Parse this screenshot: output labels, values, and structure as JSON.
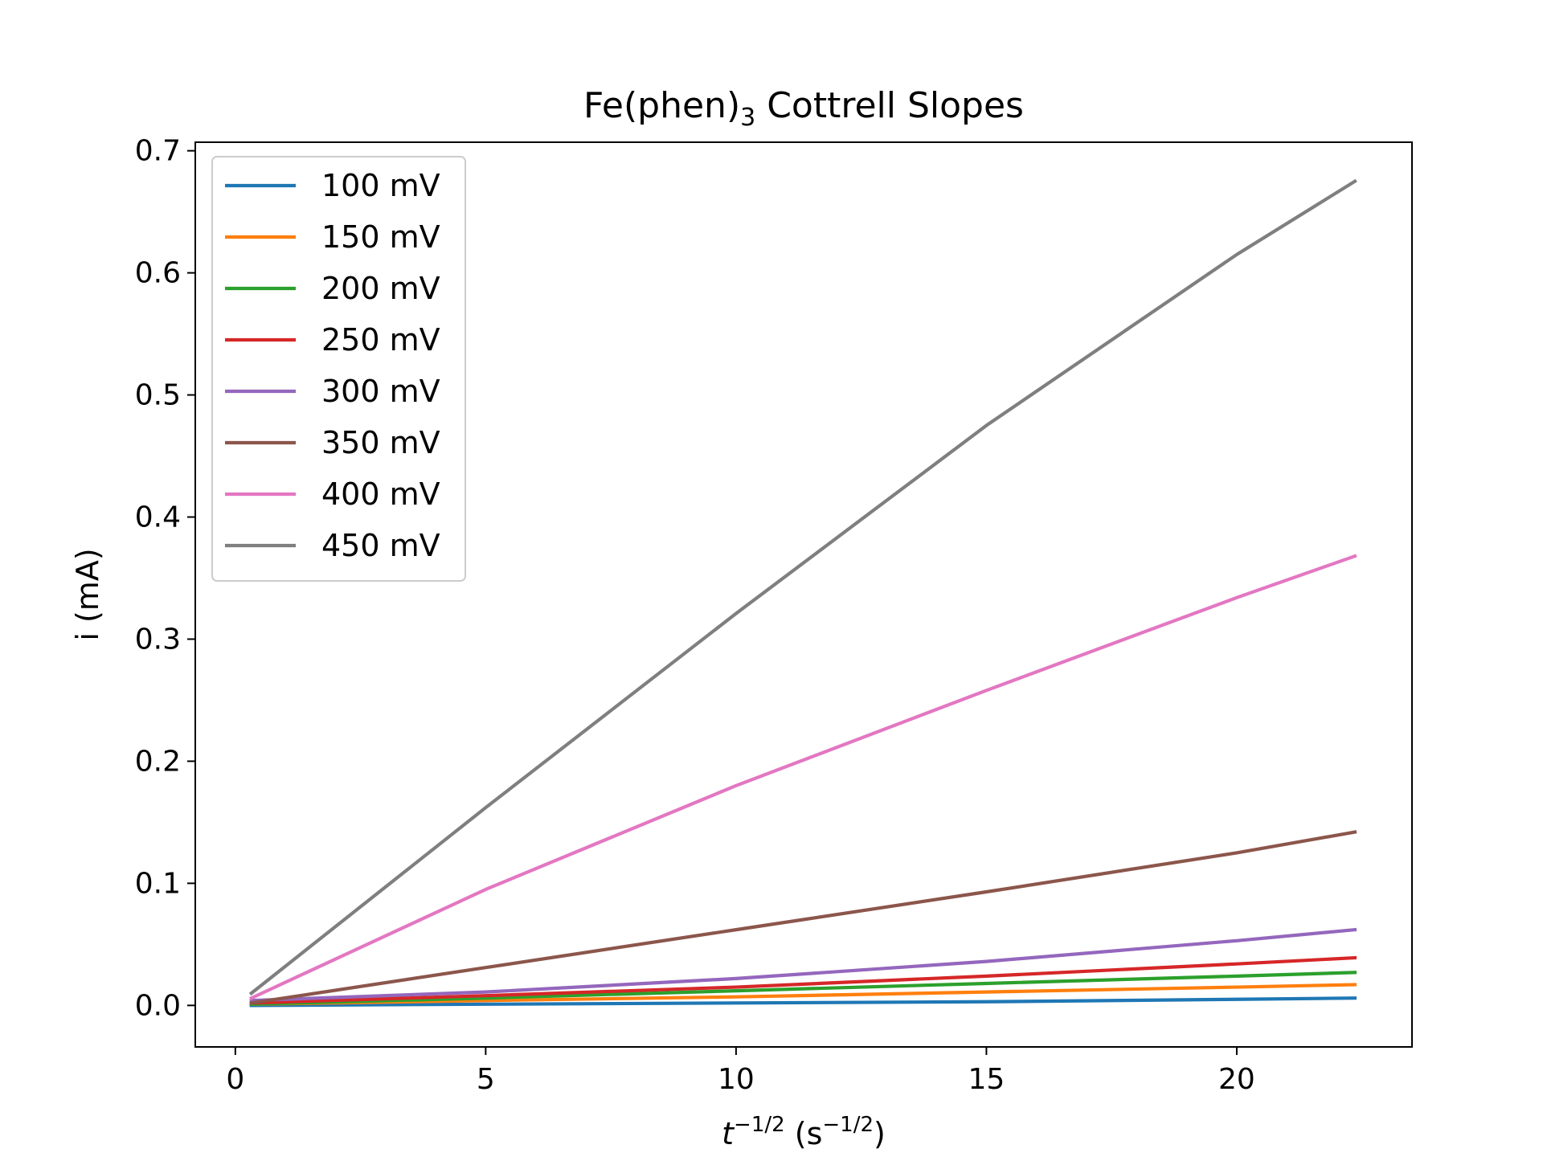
{
  "chart_data": {
    "type": "line",
    "title": {
      "main": "Fe(phen)",
      "subscript": "3",
      "suffix": " Cottrell Slopes"
    },
    "xlabel": {
      "var": "t",
      "exp": "−1/2",
      "unit_open": " (s",
      "unit_exp": "−1/2",
      "unit_close": ")"
    },
    "ylabel": "i (mA)",
    "xlim": [
      -0.8,
      23.5
    ],
    "ylim": [
      -0.034,
      0.707
    ],
    "xticks": [
      0,
      5,
      10,
      15,
      20
    ],
    "yticks": [
      0.0,
      0.1,
      0.2,
      0.3,
      0.4,
      0.5,
      0.6,
      0.7
    ],
    "xtick_labels": [
      "0",
      "5",
      "10",
      "15",
      "20"
    ],
    "ytick_labels": [
      "0.0",
      "0.1",
      "0.2",
      "0.3",
      "0.4",
      "0.5",
      "0.6",
      "0.7"
    ],
    "grid": false,
    "legend_position": "upper-left",
    "series": [
      {
        "name": "100 mV",
        "color": "#1f77b4",
        "x": [
          0.32,
          5,
          10,
          15,
          20,
          22.36
        ],
        "y": [
          0.0,
          0.001,
          0.002,
          0.003,
          0.005,
          0.006
        ]
      },
      {
        "name": "150 mV",
        "color": "#ff7f0e",
        "x": [
          0.32,
          5,
          10,
          15,
          20,
          22.36
        ],
        "y": [
          0.001,
          0.004,
          0.007,
          0.011,
          0.015,
          0.017
        ]
      },
      {
        "name": "200 mV",
        "color": "#2ca02c",
        "x": [
          0.32,
          5,
          10,
          15,
          20,
          22.36
        ],
        "y": [
          0.001,
          0.006,
          0.012,
          0.018,
          0.024,
          0.027
        ]
      },
      {
        "name": "250 mV",
        "color": "#d62728",
        "x": [
          0.32,
          5,
          10,
          15,
          20,
          22.36
        ],
        "y": [
          0.002,
          0.008,
          0.015,
          0.024,
          0.034,
          0.039
        ]
      },
      {
        "name": "300 mV",
        "color": "#9467bd",
        "x": [
          0.32,
          5,
          10,
          15,
          20,
          22.36
        ],
        "y": [
          0.004,
          0.011,
          0.022,
          0.036,
          0.053,
          0.062
        ]
      },
      {
        "name": "350 mV",
        "color": "#8c564b",
        "x": [
          0.32,
          5,
          10,
          15,
          20,
          22.36
        ],
        "y": [
          0.002,
          0.031,
          0.062,
          0.093,
          0.125,
          0.142
        ]
      },
      {
        "name": "400 mV",
        "color": "#e377c2",
        "x": [
          0.32,
          5,
          10,
          15,
          20,
          22.36
        ],
        "y": [
          0.006,
          0.095,
          0.18,
          0.258,
          0.334,
          0.368
        ]
      },
      {
        "name": "450 mV",
        "color": "#7f7f7f",
        "x": [
          0.32,
          5,
          10,
          15,
          20,
          22.36
        ],
        "y": [
          0.01,
          0.162,
          0.321,
          0.475,
          0.615,
          0.675
        ]
      }
    ]
  }
}
